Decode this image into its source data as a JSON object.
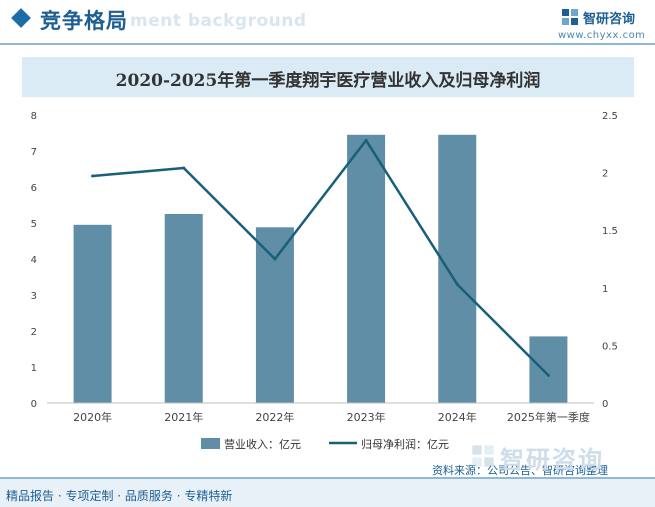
{
  "header": {
    "title": "竞争格局",
    "watermark": "ment background",
    "brand_name": "智研咨询",
    "brand_url": "www.chyxx.com"
  },
  "chart_data": {
    "type": "bar",
    "title": "2020-2025年第一季度翔宇医疗营业收入及归母净利润",
    "categories": [
      "2020年",
      "2021年",
      "2022年",
      "2023年",
      "2024年",
      "2025年第一季度"
    ],
    "series": [
      {
        "name": "营业收入：亿元",
        "type": "bar",
        "axis": "left",
        "color": "#5f8ea6",
        "values": [
          4.95,
          5.25,
          4.88,
          7.45,
          7.45,
          1.85
        ]
      },
      {
        "name": "归母净利润：亿元",
        "type": "line",
        "axis": "right",
        "color": "#1a5f7a",
        "values": [
          1.97,
          2.04,
          1.25,
          2.28,
          1.03,
          0.24
        ]
      }
    ],
    "y_left": {
      "min": 0,
      "max": 8,
      "ticks": [
        "0",
        "1",
        "2",
        "3",
        "4",
        "5",
        "6",
        "7",
        "8"
      ]
    },
    "y_right": {
      "min": 0,
      "max": 2.5,
      "ticks": [
        "0",
        "0.5",
        "1",
        "1.5",
        "2",
        "2.5"
      ]
    },
    "legend_position": "bottom",
    "grid": false
  },
  "footer": {
    "slogan": "精品报告 · 专项定制 · 品质服务 · 专精特新",
    "source": "资料来源：公司公告、智研咨询整理",
    "watermark": "智研咨询"
  }
}
